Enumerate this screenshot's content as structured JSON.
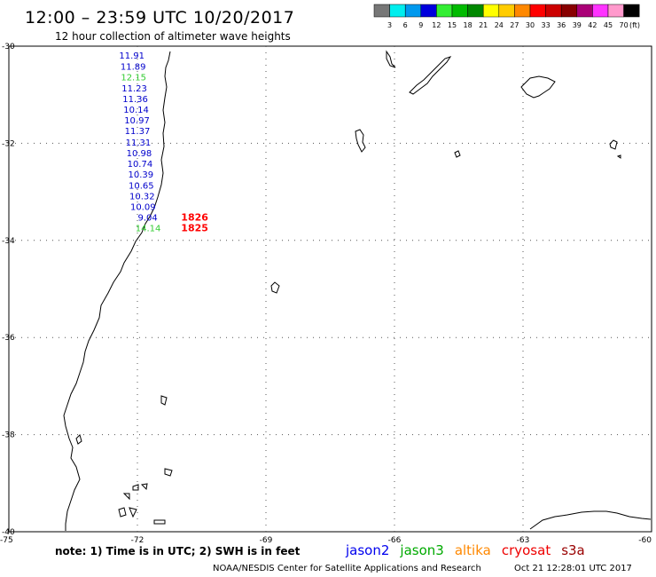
{
  "header": {
    "title": "12:00 – 23:59 UTC 10/20/2017",
    "subtitle": "12 hour collection of altimeter wave heights"
  },
  "legend": {
    "labels": [
      "3",
      "6",
      "9",
      "12",
      "15",
      "18",
      "21",
      "24",
      "27",
      "30",
      "33",
      "36",
      "39",
      "42",
      "45",
      "70"
    ],
    "unit": "(ft)",
    "colors": [
      "#777777",
      "#00eeee",
      "#0099ee",
      "#0000dd",
      "#33ee33",
      "#00bb00",
      "#008800",
      "#ffff00",
      "#ffcc00",
      "#ff8800",
      "#ff0000",
      "#cc0000",
      "#880000",
      "#aa0077",
      "#ff33ff",
      "#ff99cc",
      "#000000"
    ]
  },
  "map": {
    "lat_ticks": [
      "-30",
      "-32",
      "-34",
      "-36",
      "-38",
      "-40"
    ],
    "lon_ticks": [
      "-75",
      "-72",
      "-69",
      "-66",
      "-63",
      "-60"
    ],
    "lat_range": [
      -40,
      -30
    ],
    "lon_range": [
      -75,
      -60
    ],
    "wave_heights": [
      {
        "value": "11.91",
        "color": "#0000cc",
        "lat": -30.18,
        "lon": -72.13
      },
      {
        "value": "11.89",
        "color": "#0000cc",
        "lat": -30.41,
        "lon": -72.1
      },
      {
        "value": "12.15",
        "color": "#33cc33",
        "lat": -30.63,
        "lon": -72.09
      },
      {
        "value": "11.23",
        "color": "#0000cc",
        "lat": -30.86,
        "lon": -72.07
      },
      {
        "value": "11.36",
        "color": "#0000cc",
        "lat": -31.08,
        "lon": -72.05
      },
      {
        "value": "10.14",
        "color": "#0000cc",
        "lat": -31.3,
        "lon": -72.03
      },
      {
        "value": "10.97",
        "color": "#0000cc",
        "lat": -31.52,
        "lon": -72.01
      },
      {
        "value": "11.37",
        "color": "#0000cc",
        "lat": -31.74,
        "lon": -72.0
      },
      {
        "value": "11.31",
        "color": "#0000cc",
        "lat": -31.97,
        "lon": -71.98
      },
      {
        "value": "10.98",
        "color": "#0000cc",
        "lat": -32.19,
        "lon": -71.96
      },
      {
        "value": "10.74",
        "color": "#0000cc",
        "lat": -32.41,
        "lon": -71.94
      },
      {
        "value": "10.39",
        "color": "#0000cc",
        "lat": -32.63,
        "lon": -71.92
      },
      {
        "value": "10.65",
        "color": "#0000cc",
        "lat": -32.86,
        "lon": -71.91
      },
      {
        "value": "10.32",
        "color": "#0000cc",
        "lat": -33.08,
        "lon": -71.89
      },
      {
        "value": "10.09",
        "color": "#0000cc",
        "lat": -33.3,
        "lon": -71.87
      },
      {
        "value": "9.04",
        "color": "#0000cc",
        "lat": -33.52,
        "lon": -71.76
      },
      {
        "value": "14.14",
        "color": "#33cc33",
        "lat": -33.74,
        "lon": -71.75
      }
    ],
    "pass_times": [
      {
        "value": "1826",
        "color": "#ff0000",
        "lat": -33.52,
        "lon": -70.98
      },
      {
        "value": "1825",
        "color": "#ff0000",
        "lat": -33.74,
        "lon": -70.98
      }
    ]
  },
  "note": "note:  1) Time is in UTC;  2) SWH is in feet",
  "satellites": [
    {
      "name": "jason2",
      "color": "#0000ee"
    },
    {
      "name": "jason3",
      "color": "#00aa00"
    },
    {
      "name": "altika",
      "color": "#ff8800"
    },
    {
      "name": "cryosat",
      "color": "#ee0000"
    },
    {
      "name": "s3a",
      "color": "#990000"
    }
  ],
  "footer": {
    "source": "NOAA/NESDIS Center for Satellite Applications and Research",
    "timestamp": "Oct 21 12:28:01 UTC 2017"
  }
}
